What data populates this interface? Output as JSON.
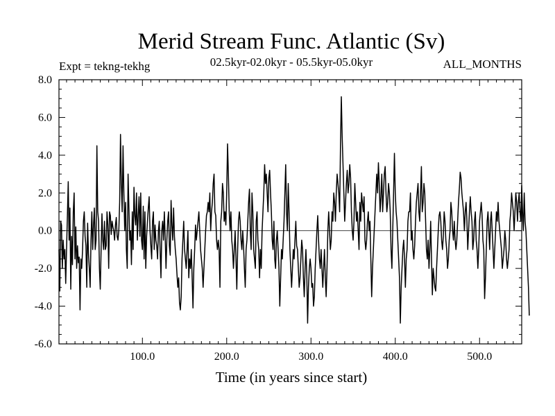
{
  "chart_data": {
    "type": "line",
    "title": "Merid Stream Func. Atlantic (Sv)",
    "subtitle_left": "Expt = tekng-tekhg",
    "subtitle_center": "02.5kyr-02.0kyr - 05.5kyr-05.0kyr",
    "subtitle_right": "ALL_MONTHS",
    "xlabel": "Time (in years since start)",
    "ylabel": "",
    "xlim": [
      1,
      550
    ],
    "ylim": [
      -6.0,
      8.0
    ],
    "x_ticks": [
      100,
      200,
      300,
      400,
      500
    ],
    "x_tick_labels": [
      "100.0",
      "200.0",
      "300.0",
      "400.0",
      "500.0"
    ],
    "y_ticks": [
      -6,
      -4,
      -2,
      0,
      2,
      4,
      6,
      8
    ],
    "y_tick_labels": [
      "-6.0",
      "-4.0",
      "-2.0",
      "0.0",
      "2.0",
      "4.0",
      "6.0",
      "8.0"
    ],
    "zero_line": true,
    "grid": false,
    "line_color": "#000000",
    "series": [
      {
        "x_start": 1,
        "x_step": 1,
        "values": [
          -1.0,
          -3.2,
          0.5,
          0.3,
          -2.0,
          -0.5,
          -1.5,
          -1.0,
          -2.8,
          -1.0,
          0.8,
          2.6,
          -0.5,
          1.2,
          -3.1,
          -0.3,
          -1.8,
          1.0,
          2.0,
          -1.5,
          0.2,
          -2.0,
          -0.8,
          -1.7,
          -1.4,
          -4.2,
          -1.5,
          -2.0,
          -1.0,
          0.5,
          1.0,
          -0.3,
          -0.8,
          -3.0,
          0.4,
          -1.2,
          -2.0,
          -3.0,
          -0.5,
          1.0,
          -1.0,
          0.3,
          1.2,
          -1.0,
          -0.5,
          4.5,
          1.0,
          0.5,
          -2.0,
          -3.1,
          -1.0,
          0.9,
          -0.5,
          -1.0,
          0.5,
          -1.0,
          -0.8,
          1.0,
          0.3,
          -2.0,
          1.0,
          0.8,
          -0.2,
          0.5,
          0.2,
          0.0,
          -0.5,
          0.3,
          0.7,
          -0.3,
          -0.5,
          0.0,
          1.5,
          5.1,
          2.5,
          1.0,
          4.5,
          2.0,
          0.0,
          1.5,
          -1.0,
          -2.0,
          3.0,
          1.2,
          -0.5,
          0.0,
          -1.8,
          1.0,
          -1.0,
          2.3,
          0.8,
          0.3,
          2.0,
          -0.5,
          0.8,
          1.8,
          -0.3,
          2.0,
          -0.5,
          -1.0,
          1.3,
          -1.5,
          1.0,
          -2.0,
          -0.3,
          0.5,
          1.2,
          1.8,
          0.0,
          -0.8,
          -1.5,
          0.5,
          1.0,
          -1.0,
          0.3,
          -0.5,
          -0.8,
          -1.5,
          0.0,
          0.5,
          -1.0,
          -2.5,
          0.0,
          0.5,
          -0.5,
          1.0,
          -0.3,
          -2.0,
          -0.5,
          0.5,
          1.0,
          -0.8,
          -1.3,
          1.6,
          0.3,
          -0.5,
          1.2,
          -0.3,
          -1.0,
          -1.5,
          -2.3,
          -3.0,
          -2.5,
          -3.8,
          -4.2,
          -3.5,
          -1.5,
          -0.5,
          0.5,
          -1.0,
          -1.5,
          -2.0,
          -1.0,
          0.0,
          -2.5,
          -1.5,
          -2.0,
          -1.0,
          -2.5,
          -4.1,
          -2.0,
          -1.0,
          0.3,
          -0.5,
          0.0,
          0.5,
          1.0,
          0.0,
          -1.0,
          -1.5,
          -2.0,
          -3.0,
          -2.0,
          -1.0,
          0.0,
          0.8,
          1.0,
          1.5,
          1.0,
          2.0,
          0.0,
          1.0,
          1.5,
          2.5,
          3.0,
          1.0,
          0.8,
          -0.5,
          -1.0,
          -0.5,
          -1.0,
          -3.0,
          0.5,
          1.0,
          2.5,
          2.0,
          0.5,
          1.0,
          0.3,
          2.0,
          4.6,
          3.0,
          1.0,
          0.0,
          1.0,
          -0.5,
          -1.0,
          -2.0,
          -1.0,
          0.0,
          -1.5,
          -3.1,
          -1.0,
          0.5,
          1.0,
          0.5,
          -0.5,
          -1.0,
          0.0,
          -0.8,
          -2.0,
          -3.0,
          -1.0,
          -0.5,
          0.5,
          1.5,
          2.2,
          0.0,
          -1.0,
          2.0,
          1.0,
          -1.0,
          -1.5,
          -2.0,
          0.5,
          1.0,
          -0.5,
          -1.0,
          -2.5,
          -1.0,
          -2.0,
          0.0,
          1.0,
          2.0,
          3.5,
          2.5,
          3.0,
          2.0,
          1.0,
          2.8,
          3.2,
          2.0,
          1.0,
          -0.5,
          -1.0,
          0.5,
          -1.5,
          -2.0,
          -0.5,
          0.0,
          -1.0,
          -2.0,
          -4.0,
          -2.5,
          -1.0,
          -1.5,
          -0.5,
          0.5,
          2.0,
          3.5,
          1.0,
          0.0,
          2.5,
          1.0,
          -1.0,
          -2.0,
          -3.0,
          -2.0,
          -1.0,
          -1.5,
          -0.5,
          0.5,
          -0.8,
          -1.0,
          -2.0,
          -3.0,
          -2.5,
          -1.5,
          -0.5,
          -1.0,
          -2.5,
          -3.5,
          -2.0,
          -1.0,
          -2.3,
          -4.9,
          -3.0,
          -2.0,
          -1.5,
          -2.0,
          -3.0,
          -2.8,
          -4.0,
          -3.5,
          -2.0,
          -1.0,
          0.0,
          0.8,
          -0.5,
          -1.5,
          -2.0,
          -1.0,
          -2.0,
          -3.0,
          -2.0,
          -1.0,
          -2.5,
          -3.5,
          -2.0,
          0.0,
          1.0,
          0.0,
          -1.0,
          -0.5,
          1.0,
          0.5,
          2.0,
          1.5,
          0.5,
          2.0,
          3.0,
          2.5,
          2.0,
          1.0,
          4.5,
          7.1,
          5.0,
          3.5,
          2.0,
          0.5,
          1.5,
          2.5,
          3.2,
          2.0,
          2.5,
          3.5,
          2.8,
          1.0,
          0.0,
          -0.5,
          0.5,
          2.5,
          1.5,
          0.5,
          1.0,
          0.0,
          -1.0,
          1.5,
          0.5,
          2.0,
          1.5,
          1.0,
          1.8,
          -0.5,
          -1.0,
          -0.5,
          0.5,
          1.0,
          0.0,
          0.5,
          -1.5,
          -3.5,
          -2.0,
          -1.0,
          0.0,
          1.0,
          2.0,
          3.0,
          2.0,
          3.6,
          2.5,
          1.0,
          1.8,
          3.0,
          1.0,
          2.0,
          3.0,
          3.4,
          2.0,
          1.0,
          1.5,
          2.5,
          2.0,
          1.0,
          -1.0,
          -2.0,
          0.0,
          2.0,
          4.1,
          2.0,
          1.0,
          0.5,
          -0.5,
          -1.5,
          -2.5,
          -4.9,
          -3.0,
          -2.0,
          -1.0,
          -0.5,
          -1.5,
          -3.0,
          -1.5,
          -1.0,
          0.5,
          1.0,
          1.0,
          2.0,
          -0.5,
          0.0,
          -1.0,
          -1.5,
          -0.8,
          0.5,
          1.5,
          2.0,
          2.5,
          1.0,
          0.5,
          2.0,
          3.4,
          1.0,
          1.5,
          2.5,
          2.0,
          0.5,
          -1.0,
          -1.5,
          -0.5,
          -2.0,
          -1.0,
          0.5,
          -1.5,
          -3.4,
          -2.0,
          -2.5,
          -3.0,
          -3.2,
          -2.0,
          -1.0,
          0.0,
          0.8,
          1.0,
          0.5,
          -0.5,
          -1.0,
          -0.3,
          1.0,
          0.5,
          -0.5,
          -1.0,
          -2.0,
          -1.5,
          -0.5,
          0.0,
          1.5,
          1.0,
          0.0,
          -0.5,
          0.5,
          -0.5,
          -1.0,
          -0.5,
          0.5,
          1.5,
          2.2,
          3.1,
          2.8,
          2.0,
          1.5,
          1.0,
          0.0,
          1.0,
          1.5,
          0.5,
          -1.0,
          0.0,
          1.0,
          1.8,
          1.0,
          0.5,
          -1.0,
          -0.5,
          0.5,
          1.0,
          -0.5,
          -1.0,
          -2.0,
          -1.0,
          0.5,
          1.0,
          1.5,
          0.8,
          -0.5,
          -1.0,
          -3.6,
          -2.5,
          -1.0,
          0.5,
          1.0,
          0.0,
          -1.0,
          0.5,
          1.0,
          0.0,
          -1.0,
          -2.0,
          -1.0,
          0.0,
          1.0,
          0.5,
          1.5,
          0.5,
          0.0,
          -0.5,
          -1.0,
          -2.0,
          -1.5,
          -1.0,
          0.0,
          -0.5,
          -1.5,
          -2.0,
          -1.5,
          -1.0,
          0.5,
          1.0,
          2.0,
          1.5,
          1.0,
          0.0,
          1.0,
          2.0,
          1.5,
          0.5,
          1.5,
          2.0,
          1.0,
          0.5,
          2.4,
          1.0,
          0.0,
          2.0,
          0.5,
          0.0,
          -1.0,
          -2.0,
          -3.0,
          -4.5
        ]
      }
    ]
  }
}
